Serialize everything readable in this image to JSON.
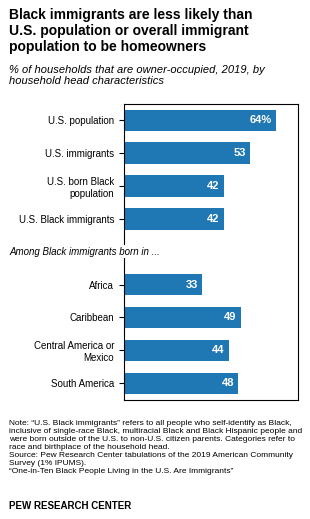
{
  "chart_data": {
    "type": "bar",
    "orientation": "horizontal",
    "title": "Black immigrants are less likely than\nU.S. population or overall immigrant\npopulation to be homeowners",
    "subtitle": "% of households that are owner-occupied, 2019, by\nhousehold head characteristics",
    "categories": [
      "U.S. population",
      "U.S. immigrants",
      "U.S. born Black\npopulation",
      "U.S. Black immigrants",
      null,
      "Africa",
      "Caribbean",
      "Central America or\nMexico",
      "South America"
    ],
    "values": [
      64,
      53,
      42,
      42,
      null,
      33,
      49,
      44,
      48
    ],
    "value_labels": [
      "64%",
      "53",
      "42",
      "42",
      null,
      "33",
      "49",
      "44",
      "48"
    ],
    "data_labels": true,
    "annotations": [
      {
        "text": "Among Black immigrants born in ...",
        "y": 4
      }
    ],
    "note": "Note: “U.S. Black immigrants” refers to all people who self-identify as Black, inclusive of single-race Black, multiracial Black and Black Hispanic people and were born outside of the U.S. to non-U.S. citizen parents. Categories refer to race and birthplace of the household head.\nSource: Pew Research Center tabulations of the 2019 American Community Survey (1% IPUMS).\n“One-in-Ten Black People Living in the U.S. Are Immigrants”",
    "footer": "PEW RESEARCH CENTER",
    "xlim": [
      0,
      73
    ],
    "xticks": [],
    "tick_labels": "y",
    "grid": false
  }
}
